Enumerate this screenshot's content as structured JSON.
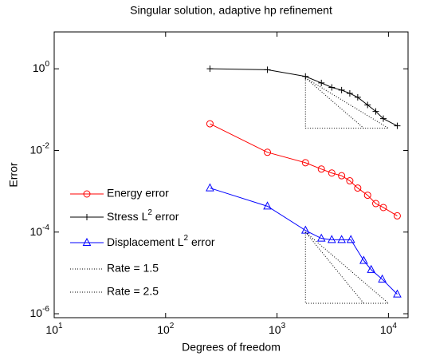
{
  "chart_data": {
    "type": "line",
    "title": "Singular solution, adaptive hp refinement",
    "xlabel": "Degrees of freedom",
    "ylabel": "Error",
    "xscale": "log",
    "yscale": "log",
    "xlim": [
      10,
      15000
    ],
    "ylim": [
      8e-07,
      8
    ],
    "xticks": [
      {
        "value": 10,
        "label": "10^1"
      },
      {
        "value": 100,
        "label": "10^2"
      },
      {
        "value": 1000,
        "label": "10^3"
      },
      {
        "value": 10000,
        "label": "10^4"
      }
    ],
    "yticks": [
      {
        "value": 1e-06,
        "label": "10^-6"
      },
      {
        "value": 0.0001,
        "label": "10^-4"
      },
      {
        "value": 0.01,
        "label": "10^-2"
      },
      {
        "value": 1,
        "label": "10^0"
      }
    ],
    "legend": "lower left",
    "series": [
      {
        "name": "Energy error",
        "color": "#ff0000",
        "marker": "circle",
        "dash": "solid",
        "x": [
          250,
          820,
          1800,
          2500,
          3100,
          3800,
          4500,
          5300,
          6500,
          7700,
          9000,
          12000
        ],
        "values": [
          0.045,
          0.009,
          0.005,
          0.0035,
          0.0028,
          0.0024,
          0.0018,
          0.0012,
          0.0008,
          0.0005,
          0.0004,
          0.00025
        ]
      },
      {
        "name": "Stress L^2 error",
        "color": "#000000",
        "marker": "plus",
        "dash": "solid",
        "x": [
          250,
          820,
          1800,
          2500,
          3100,
          3800,
          4500,
          5300,
          6500,
          7700,
          9000,
          12000
        ],
        "values": [
          1.0,
          0.95,
          0.65,
          0.45,
          0.35,
          0.3,
          0.25,
          0.2,
          0.13,
          0.09,
          0.06,
          0.04
        ]
      },
      {
        "name": "Displacement L^2 error",
        "color": "#0000ff",
        "marker": "triangle",
        "dash": "solid",
        "x": [
          250,
          820,
          1800,
          2500,
          3100,
          3800,
          4600,
          6000,
          7000,
          8800,
          12000
        ],
        "values": [
          0.0012,
          0.00043,
          0.00011,
          7e-05,
          6.5e-05,
          6.5e-05,
          6.5e-05,
          2e-05,
          1.2e-05,
          7e-06,
          3e-06
        ]
      },
      {
        "name": "Rate = 1.5",
        "color": "#000000",
        "marker": "none",
        "dash": "dotted",
        "x": [
          1800,
          1800,
          10000,
          1800,
          null,
          1800,
          1800,
          10000,
          1800
        ],
        "values": [
          0.6,
          0.035,
          0.035,
          0.6,
          null,
          0.0001,
          1.8e-06,
          1.8e-06,
          0.0001
        ]
      },
      {
        "name": "Rate = 2.5",
        "color": "#000000",
        "marker": "none",
        "dash": "dotted",
        "x": [
          1800,
          6000,
          null,
          1800,
          6000
        ],
        "values": [
          0.6,
          0.035,
          null,
          0.0001,
          1.8e-06
        ]
      }
    ]
  }
}
